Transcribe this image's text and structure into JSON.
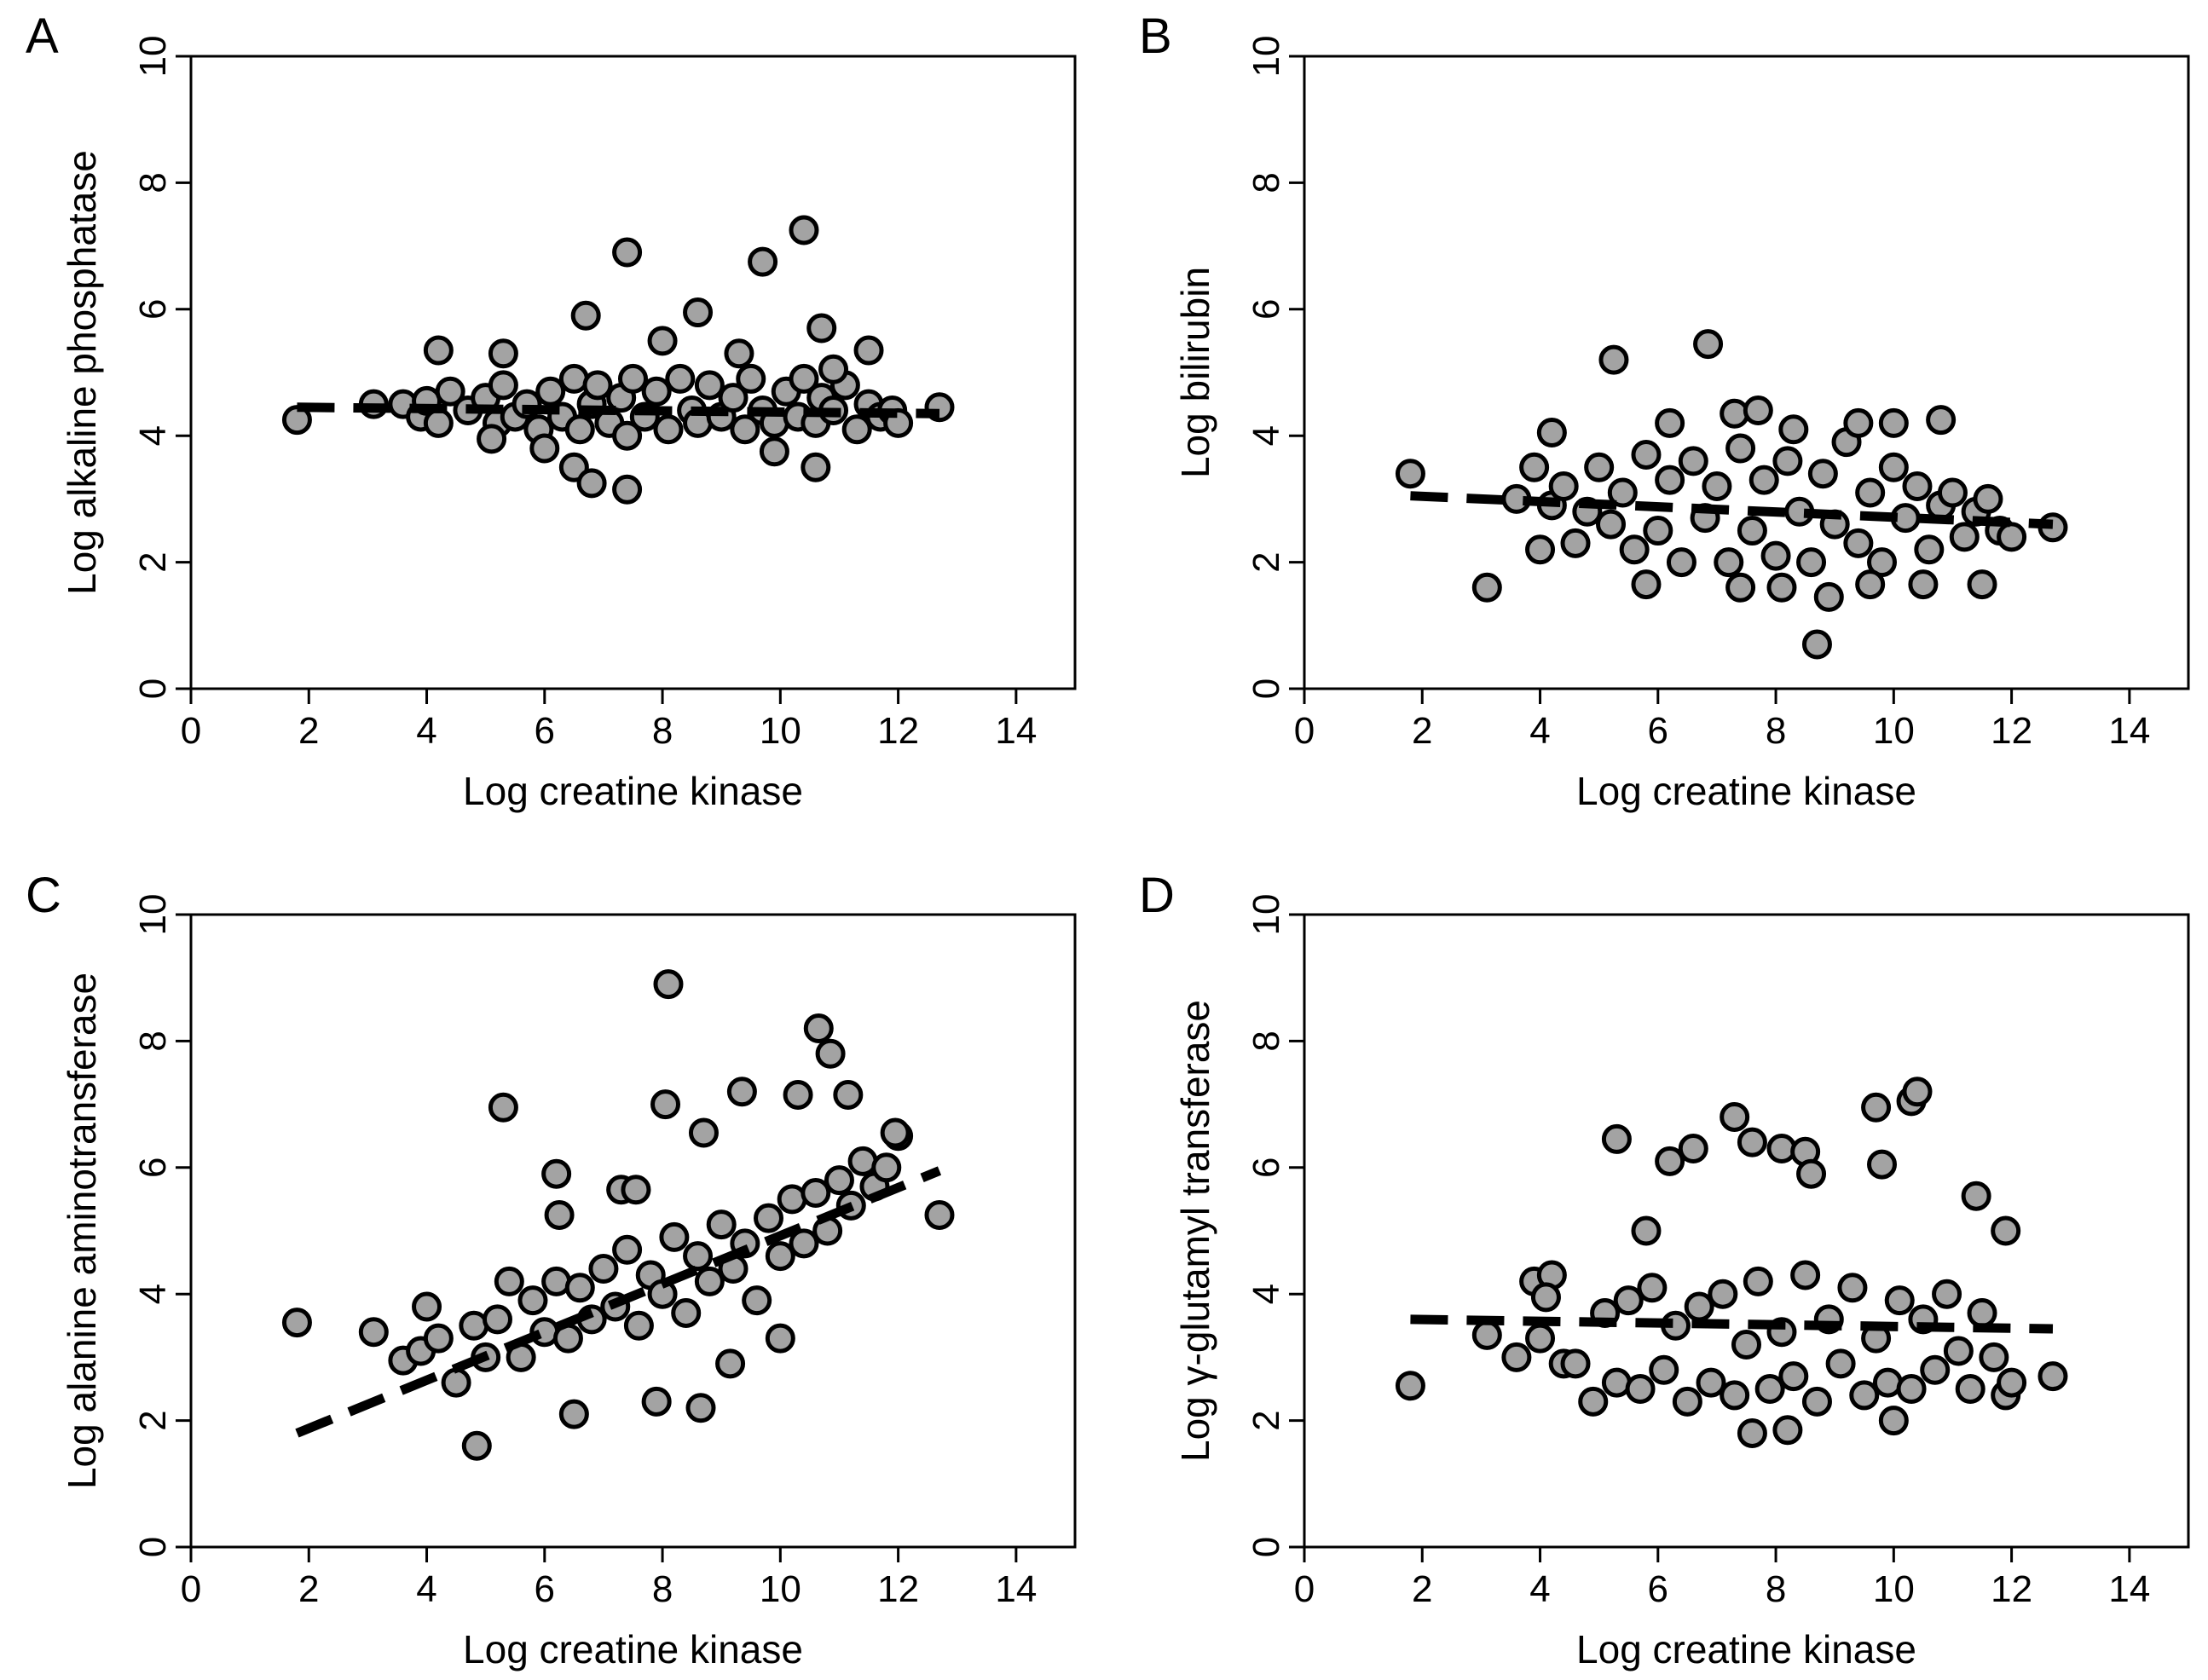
{
  "chart_data": [
    {
      "panel": "A",
      "type": "scatter",
      "xlabel": "Log creatine kinase",
      "ylabel": "Log alkaline phosphatase",
      "xlim": [
        0,
        15
      ],
      "ylim": [
        0,
        10
      ],
      "xticks": [
        0,
        2,
        4,
        6,
        8,
        10,
        12,
        14
      ],
      "yticks": [
        0,
        2,
        4,
        6,
        8,
        10
      ],
      "fit": {
        "x": [
          1.8,
          12.7
        ],
        "y": [
          4.45,
          4.35
        ]
      },
      "points": {
        "x": [
          1.8,
          3.1,
          3.6,
          3.9,
          4.0,
          4.2,
          4.4,
          4.7,
          5.0,
          5.2,
          5.3,
          5.5,
          5.7,
          5.9,
          6.1,
          6.3,
          6.5,
          6.6,
          6.8,
          6.9,
          7.1,
          7.3,
          7.4,
          7.5,
          7.7,
          7.9,
          8.1,
          8.3,
          8.5,
          8.6,
          8.8,
          9.0,
          9.2,
          9.4,
          9.5,
          9.7,
          9.9,
          10.1,
          10.3,
          10.4,
          10.6,
          10.7,
          10.9,
          11.1,
          11.3,
          11.5,
          11.7,
          11.9,
          12.0,
          12.7,
          4.2,
          5.3,
          6.7,
          7.4,
          8.6,
          9.7,
          10.4,
          10.7,
          11.5,
          6.5,
          6.8,
          7.4,
          9.9,
          10.6,
          5.1,
          6.0,
          8.0,
          9.3,
          10.9
        ],
        "y": [
          4.25,
          4.5,
          4.5,
          4.3,
          4.55,
          4.2,
          4.7,
          4.4,
          4.6,
          4.2,
          4.8,
          4.3,
          4.5,
          4.1,
          4.7,
          4.3,
          4.9,
          4.1,
          4.5,
          4.8,
          4.2,
          4.6,
          4.0,
          4.9,
          4.3,
          4.7,
          4.1,
          4.9,
          4.4,
          4.2,
          4.8,
          4.3,
          4.6,
          4.1,
          4.9,
          4.4,
          4.2,
          4.7,
          4.3,
          4.9,
          4.2,
          4.6,
          4.4,
          4.8,
          4.1,
          4.5,
          4.3,
          4.4,
          4.2,
          4.45,
          5.35,
          5.3,
          5.9,
          6.9,
          5.95,
          6.75,
          7.25,
          5.7,
          5.35,
          3.5,
          3.25,
          3.15,
          3.75,
          3.5,
          3.95,
          3.8,
          5.5,
          5.3,
          5.05
        ]
      }
    },
    {
      "panel": "B",
      "type": "scatter",
      "xlabel": "Log creatine kinase",
      "ylabel": "Log bilirubin",
      "xlim": [
        0,
        15
      ],
      "ylim": [
        0,
        10
      ],
      "xticks": [
        0,
        2,
        4,
        6,
        8,
        10,
        12,
        14
      ],
      "yticks": [
        0,
        2,
        4,
        6,
        8,
        10
      ],
      "fit": {
        "x": [
          1.8,
          12.7
        ],
        "y": [
          3.05,
          2.6
        ]
      },
      "points": {
        "x": [
          1.8,
          3.1,
          3.6,
          3.9,
          4.0,
          4.2,
          4.4,
          4.6,
          4.8,
          5.0,
          5.2,
          5.4,
          5.6,
          5.8,
          6.0,
          6.2,
          6.4,
          6.6,
          6.8,
          7.0,
          7.2,
          7.4,
          7.6,
          7.8,
          8.0,
          8.2,
          8.4,
          8.6,
          8.8,
          9.0,
          9.2,
          9.4,
          9.6,
          9.8,
          10.0,
          10.2,
          10.4,
          10.6,
          10.8,
          11.0,
          11.2,
          11.4,
          11.6,
          11.8,
          12.0,
          12.7,
          5.25,
          6.85,
          8.7,
          4.2,
          7.3,
          7.7,
          9.4,
          10.0,
          10.8,
          5.8,
          7.4,
          8.1,
          8.9,
          9.6,
          10.5,
          11.5,
          6.2,
          8.3
        ],
        "y": [
          3.4,
          1.6,
          3.0,
          3.5,
          2.2,
          2.9,
          3.2,
          2.3,
          2.8,
          3.5,
          2.6,
          3.1,
          2.2,
          3.7,
          2.5,
          3.3,
          2.0,
          3.6,
          2.7,
          3.2,
          2.0,
          3.8,
          2.5,
          3.3,
          2.1,
          3.6,
          2.8,
          2.0,
          3.4,
          2.6,
          3.9,
          2.3,
          3.1,
          2.0,
          3.5,
          2.7,
          3.2,
          2.2,
          2.9,
          3.1,
          2.4,
          2.8,
          3.0,
          2.5,
          2.4,
          2.55,
          5.2,
          5.45,
          0.7,
          4.05,
          4.35,
          4.4,
          4.2,
          4.2,
          4.25,
          1.65,
          1.6,
          1.6,
          1.45,
          1.65,
          1.65,
          1.65,
          4.2,
          4.1
        ]
      }
    },
    {
      "panel": "C",
      "type": "scatter",
      "xlabel": "Log creatine kinase",
      "ylabel": "Log alanine aminotransferase",
      "xlim": [
        0,
        15
      ],
      "ylim": [
        0,
        10
      ],
      "xticks": [
        0,
        2,
        4,
        6,
        8,
        10,
        12,
        14
      ],
      "yticks": [
        0,
        2,
        4,
        6,
        8,
        10
      ],
      "fit": {
        "x": [
          1.8,
          12.7
        ],
        "y": [
          1.8,
          5.95
        ]
      },
      "points": {
        "x": [
          1.8,
          3.1,
          3.6,
          3.9,
          4.0,
          4.2,
          4.5,
          4.8,
          5.0,
          5.2,
          5.4,
          5.6,
          5.8,
          6.0,
          6.2,
          6.4,
          6.6,
          6.8,
          7.0,
          7.2,
          7.4,
          7.6,
          7.8,
          8.0,
          8.2,
          8.4,
          8.6,
          8.8,
          9.0,
          9.2,
          9.4,
          9.6,
          9.8,
          10.0,
          10.2,
          10.4,
          10.6,
          10.8,
          11.0,
          11.2,
          11.4,
          11.6,
          11.8,
          12.0,
          12.7,
          8.1,
          10.65,
          10.85,
          5.3,
          6.2,
          6.25,
          8.05,
          9.35,
          4.85,
          6.5,
          7.9,
          8.65,
          9.15,
          10.0,
          11.15,
          11.95,
          7.3,
          7.55,
          8.7,
          10.3
        ],
        "y": [
          3.55,
          3.4,
          2.95,
          3.1,
          3.8,
          3.3,
          2.6,
          3.5,
          3.0,
          3.6,
          4.2,
          3.0,
          3.9,
          3.4,
          4.2,
          3.3,
          4.1,
          3.6,
          4.4,
          3.8,
          4.7,
          3.5,
          4.3,
          4.0,
          4.9,
          3.7,
          4.6,
          4.2,
          5.1,
          4.4,
          4.8,
          3.9,
          5.2,
          4.6,
          5.5,
          4.8,
          5.6,
          5.0,
          5.8,
          5.4,
          6.1,
          5.7,
          6.0,
          6.5,
          5.25,
          8.9,
          8.2,
          7.8,
          6.95,
          5.9,
          5.25,
          7.0,
          7.2,
          1.6,
          2.1,
          2.3,
          2.2,
          2.9,
          3.3,
          7.15,
          6.55,
          5.65,
          5.65,
          6.55,
          7.15
        ]
      }
    },
    {
      "panel": "D",
      "type": "scatter",
      "xlabel": "Log creatine kinase",
      "ylabel": "Log γ-glutamyl transferase",
      "xlim": [
        0,
        15
      ],
      "ylim": [
        0,
        10
      ],
      "xticks": [
        0,
        2,
        4,
        6,
        8,
        10,
        12,
        14
      ],
      "yticks": [
        0,
        2,
        4,
        6,
        8,
        10
      ],
      "fit": {
        "x": [
          1.8,
          12.7
        ],
        "y": [
          3.6,
          3.45
        ]
      },
      "points": {
        "x": [
          1.8,
          3.1,
          3.6,
          3.9,
          4.0,
          4.2,
          4.4,
          4.6,
          4.9,
          5.1,
          5.3,
          5.5,
          5.7,
          5.9,
          6.1,
          6.3,
          6.5,
          6.7,
          6.9,
          7.1,
          7.3,
          7.5,
          7.7,
          7.9,
          8.1,
          8.3,
          8.5,
          8.7,
          8.9,
          9.1,
          9.3,
          9.5,
          9.7,
          9.9,
          10.1,
          10.3,
          10.5,
          10.7,
          10.9,
          11.1,
          11.3,
          11.5,
          11.7,
          11.9,
          12.0,
          12.7,
          5.3,
          6.2,
          6.6,
          7.3,
          7.6,
          8.1,
          8.5,
          9.7,
          9.8,
          10.3,
          10.4,
          11.4,
          11.9,
          7.6,
          8.2,
          10.0,
          4.1,
          5.8,
          8.6
        ],
        "y": [
          2.55,
          3.35,
          3.0,
          4.2,
          3.3,
          4.3,
          2.9,
          2.9,
          2.3,
          3.7,
          2.6,
          3.9,
          2.5,
          4.1,
          2.8,
          3.5,
          2.3,
          3.8,
          2.6,
          4.0,
          2.4,
          3.2,
          4.2,
          2.5,
          3.4,
          2.7,
          4.3,
          2.3,
          3.6,
          2.9,
          4.1,
          2.4,
          3.3,
          2.6,
          3.9,
          2.5,
          3.6,
          2.8,
          4.0,
          3.1,
          2.5,
          3.7,
          3.0,
          2.4,
          2.6,
          2.7,
          6.45,
          6.1,
          6.3,
          6.8,
          6.4,
          6.3,
          6.25,
          6.95,
          6.05,
          7.05,
          7.2,
          5.55,
          5.0,
          1.8,
          1.85,
          2.0,
          3.95,
          5.0,
          5.9
        ]
      }
    }
  ]
}
